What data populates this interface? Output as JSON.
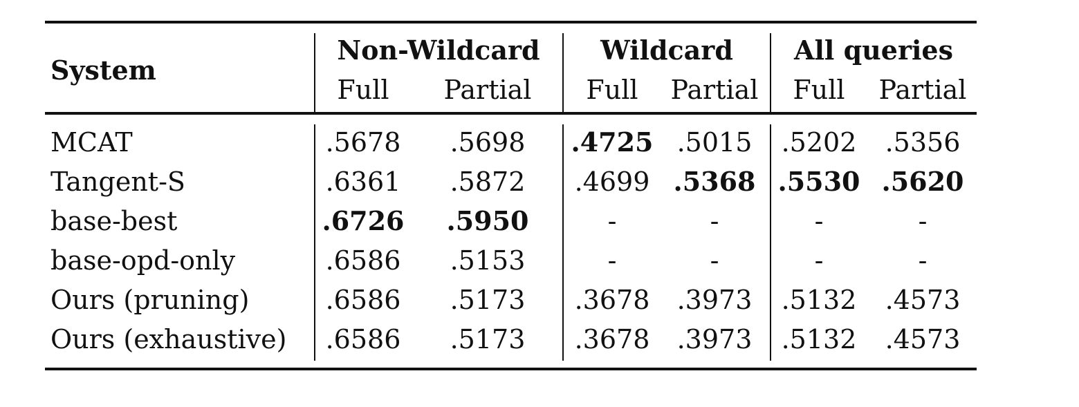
{
  "table": {
    "header": {
      "system": "System",
      "groups": [
        {
          "label": "Non-Wildcard",
          "sub": [
            "Full",
            "Partial"
          ]
        },
        {
          "label": "Wildcard",
          "sub": [
            "Full",
            "Partial"
          ]
        },
        {
          "label": "All queries",
          "sub": [
            "Full",
            "Partial"
          ]
        }
      ]
    },
    "rows": [
      {
        "system": "MCAT",
        "values": [
          ".5678",
          ".5698",
          ".4725",
          ".5015",
          ".5202",
          ".5356"
        ],
        "bold": [
          false,
          false,
          true,
          false,
          false,
          false
        ]
      },
      {
        "system": "Tangent-S",
        "values": [
          ".6361",
          ".5872",
          ".4699",
          ".5368",
          ".5530",
          ".5620"
        ],
        "bold": [
          false,
          false,
          false,
          true,
          true,
          true
        ]
      },
      {
        "system": "base-best",
        "values": [
          ".6726",
          ".5950",
          "-",
          "-",
          "-",
          "-"
        ],
        "bold": [
          true,
          true,
          false,
          false,
          false,
          false
        ]
      },
      {
        "system": "base-opd-only",
        "values": [
          ".6586",
          ".5153",
          "-",
          "-",
          "-",
          "-"
        ],
        "bold": [
          false,
          false,
          false,
          false,
          false,
          false
        ]
      },
      {
        "system": "Ours (pruning)",
        "values": [
          ".6586",
          ".5173",
          ".3678",
          ".3973",
          ".5132",
          ".4573"
        ],
        "bold": [
          false,
          false,
          false,
          false,
          false,
          false
        ]
      },
      {
        "system": "Ours (exhaustive)",
        "values": [
          ".6586",
          ".5173",
          ".3678",
          ".3973",
          ".5132",
          ".4573"
        ],
        "bold": [
          false,
          false,
          false,
          false,
          false,
          false
        ]
      }
    ]
  }
}
